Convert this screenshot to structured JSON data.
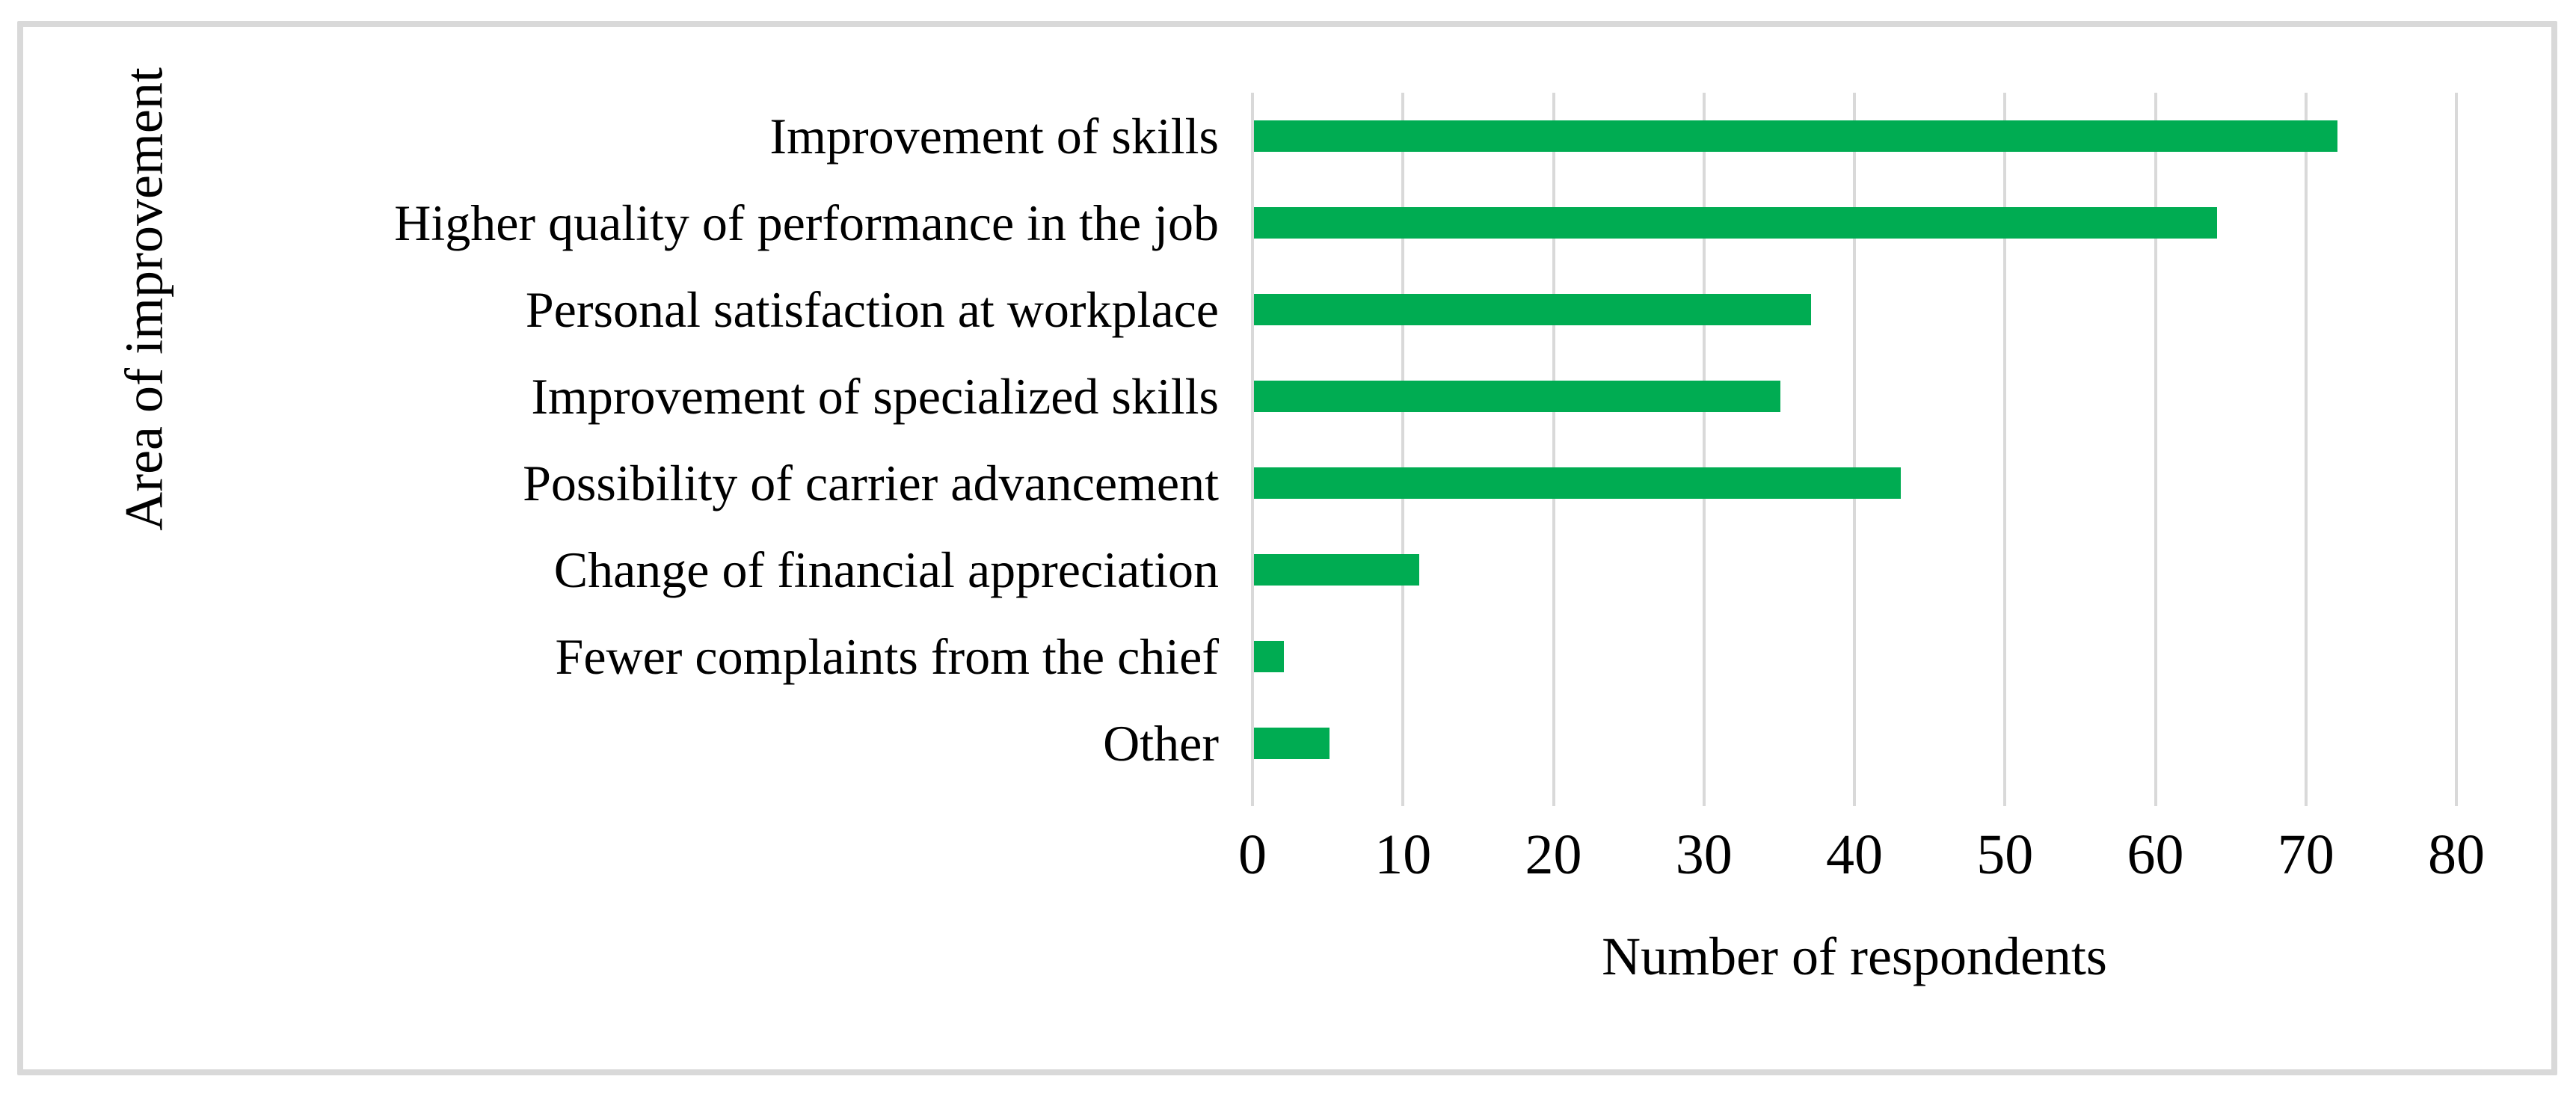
{
  "figure": {
    "background_color": "#ffffff",
    "frame_color": "#d9d9d9",
    "gridline_color": "#d9d9d9",
    "bar_color": "#00ac52",
    "text_color": "#000000"
  },
  "chart_data": {
    "type": "bar",
    "orientation": "horizontal",
    "title": "",
    "xlabel": "Number of respondents",
    "ylabel": "Area of improvement",
    "categories": [
      "Improvement of skills",
      "Higher quality of performance in the job",
      "Personal satisfaction at workplace",
      "Improvement of specialized skills",
      "Possibility of carrier advancement",
      "Change of financial appreciation",
      "Fewer complaints from the chief",
      "Other"
    ],
    "values": [
      72,
      64,
      37,
      35,
      43,
      11,
      2,
      5
    ],
    "xlim": [
      0,
      80
    ],
    "xticks": [
      0,
      10,
      20,
      30,
      40,
      50,
      60,
      70,
      80
    ],
    "grid": "vertical-gridlines",
    "legend": "none"
  }
}
